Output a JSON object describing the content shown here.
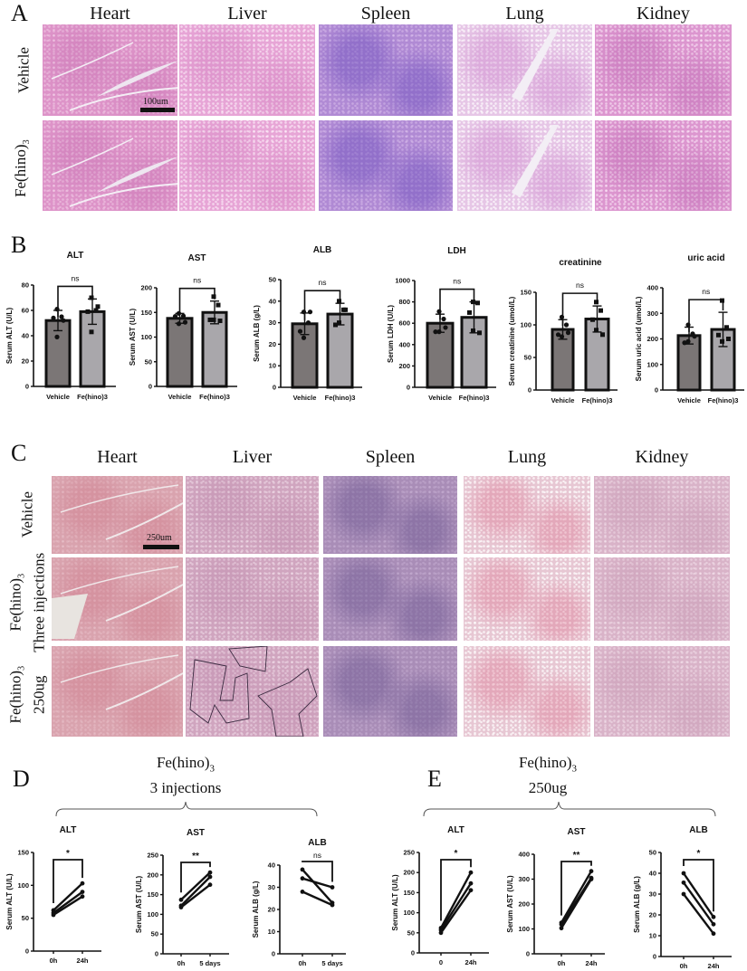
{
  "panels": {
    "A": {
      "letter": "A",
      "columns": [
        "Heart",
        "Liver",
        "Spleen",
        "Lung",
        "Kidney"
      ],
      "rows": [
        "Vehicle",
        "Fe(hino)3"
      ],
      "scale_bar": "100um"
    },
    "B": {
      "letter": "B"
    },
    "C": {
      "letter": "C",
      "columns": [
        "Heart",
        "Liver",
        "Spleen",
        "Lung",
        "Kidney"
      ],
      "rows": [
        {
          "line1": "Vehicle",
          "line2": ""
        },
        {
          "line1": "Fe(hino)3",
          "line2": "Three injections"
        },
        {
          "line1": "Fe(hino)3",
          "line2": "250ug"
        }
      ],
      "scale_bar": "250um"
    },
    "D": {
      "letter": "D",
      "group_line1": "Fe(hino)3",
      "group_line2": "3 injections"
    },
    "E": {
      "letter": "E",
      "group_line1": "Fe(hino)3",
      "group_line2": "250ug"
    }
  },
  "colors": {
    "vehicle_bar": "#7b7676",
    "treatment_bar": "#a9a7ab",
    "ink": "#111111"
  },
  "chart_data": [
    {
      "panel": "B",
      "type": "bar",
      "title": "ALT",
      "ylabel": "Serum ALT (U/L)",
      "categories": [
        "Vehicle",
        "Fe(hino)3"
      ],
      "ylim": [
        0,
        80
      ],
      "yticks": [
        0,
        20,
        40,
        60,
        80
      ],
      "values": [
        52,
        59
      ],
      "sd": [
        8,
        10
      ],
      "points": [
        [
          61,
          55,
          54,
          39,
          52
        ],
        [
          70,
          60,
          59,
          43,
          63
        ]
      ],
      "significance": "ns"
    },
    {
      "panel": "B",
      "type": "bar",
      "title": "AST",
      "ylabel": "Serum AST (U/L)",
      "categories": [
        "Vehicle",
        "Fe(hino)3"
      ],
      "ylim": [
        0,
        200
      ],
      "yticks": [
        0,
        50,
        100,
        150,
        200
      ],
      "values": [
        138,
        150
      ],
      "sd": [
        10,
        23
      ],
      "points": [
        [
          148,
          143,
          142,
          127,
          130
        ],
        [
          182,
          165,
          135,
          135,
          133
        ]
      ],
      "significance": "ns"
    },
    {
      "panel": "B",
      "type": "bar",
      "title": "ALB",
      "ylabel": "Serum ALB (g/L)",
      "categories": [
        "Vehicle",
        "Fe(hino)3"
      ],
      "ylim": [
        0,
        50
      ],
      "yticks": [
        0,
        10,
        20,
        30,
        40,
        50
      ],
      "values": [
        29.5,
        34
      ],
      "sd": [
        5,
        5
      ],
      "points": [
        [
          35,
          30,
          26,
          23,
          35
        ],
        [
          40,
          36,
          29,
          30,
          36
        ]
      ],
      "significance": "ns"
    },
    {
      "panel": "B",
      "type": "bar",
      "title": "LDH",
      "ylabel": "Serum LDH (U/L)",
      "categories": [
        "Vehicle",
        "Fe(hino)3"
      ],
      "ylim": [
        0,
        1000
      ],
      "yticks": [
        0,
        200,
        400,
        600,
        800,
        1000
      ],
      "values": [
        600,
        655
      ],
      "sd": [
        85,
        145
      ],
      "points": [
        [
          710,
          640,
          520,
          520,
          560
        ],
        [
          800,
          790,
          700,
          530,
          510
        ]
      ],
      "significance": "ns"
    },
    {
      "panel": "B",
      "type": "bar",
      "title": "creatinine",
      "ylabel": "Serum creatinine (umol/L)",
      "categories": [
        "Vehicle",
        "Fe(hino)3"
      ],
      "ylim": [
        0,
        150
      ],
      "yticks": [
        0,
        50,
        100,
        150
      ],
      "values": [
        93,
        109
      ],
      "sd": [
        15,
        20
      ],
      "points": [
        [
          112,
          100,
          85,
          82,
          88
        ],
        [
          135,
          122,
          108,
          92,
          85
        ]
      ],
      "significance": "ns"
    },
    {
      "panel": "B",
      "type": "bar",
      "title": "uric acid",
      "ylabel": "Serum uric acid (umol/L)",
      "categories": [
        "Vehicle",
        "Fe(hino)3"
      ],
      "ylim": [
        0,
        400
      ],
      "yticks": [
        0,
        100,
        200,
        300,
        400
      ],
      "values": [
        213,
        237
      ],
      "sd": [
        33,
        67
      ],
      "points": [
        [
          255,
          220,
          185,
          190,
          210
        ],
        [
          350,
          245,
          215,
          190,
          200
        ]
      ],
      "significance": "ns"
    },
    {
      "panel": "D",
      "type": "line",
      "title": "ALT",
      "ylabel": "Serum ALT (U/L)",
      "x": [
        "0h",
        "24h"
      ],
      "ylim": [
        0,
        150
      ],
      "yticks": [
        0,
        50,
        100,
        150
      ],
      "series": [
        {
          "values": [
            62,
            103
          ]
        },
        {
          "values": [
            58,
            90
          ]
        },
        {
          "values": [
            55,
            83
          ]
        }
      ],
      "significance": "*"
    },
    {
      "panel": "D",
      "type": "line",
      "title": "AST",
      "ylabel": "Serum AST (U/L)",
      "x": [
        "0h",
        "5 days"
      ],
      "ylim": [
        0,
        250
      ],
      "yticks": [
        0,
        50,
        100,
        150,
        200,
        250
      ],
      "series": [
        {
          "values": [
            137,
            206
          ]
        },
        {
          "values": [
            122,
            195
          ]
        },
        {
          "values": [
            118,
            175
          ]
        }
      ],
      "significance": "**"
    },
    {
      "panel": "D",
      "type": "line",
      "title": "ALB",
      "ylabel": "Serum ALB (g/L)",
      "x": [
        "0h",
        "5 days"
      ],
      "ylim": [
        0,
        40
      ],
      "yticks": [
        0,
        10,
        20,
        30,
        40
      ],
      "series": [
        {
          "values": [
            38,
            23
          ]
        },
        {
          "values": [
            34,
            30
          ]
        },
        {
          "values": [
            28,
            22
          ]
        }
      ],
      "significance": "ns"
    },
    {
      "panel": "E",
      "type": "line",
      "title": "ALT",
      "ylabel": "Serum ALT (U/L)",
      "x": [
        "0",
        "24h"
      ],
      "ylim": [
        0,
        250
      ],
      "yticks": [
        0,
        50,
        100,
        150,
        200,
        250
      ],
      "series": [
        {
          "values": [
            62,
            200
          ]
        },
        {
          "values": [
            57,
            173
          ]
        },
        {
          "values": [
            50,
            156
          ]
        }
      ],
      "significance": "*"
    },
    {
      "panel": "E",
      "type": "line",
      "title": "AST",
      "ylabel": "Serum AST (U/L)",
      "x": [
        "0h",
        "24h"
      ],
      "ylim": [
        0,
        400
      ],
      "yticks": [
        0,
        100,
        200,
        300,
        400
      ],
      "series": [
        {
          "values": [
            125,
            332
          ]
        },
        {
          "values": [
            118,
            305
          ]
        },
        {
          "values": [
            103,
            300
          ]
        }
      ],
      "significance": "**"
    },
    {
      "panel": "E",
      "type": "line",
      "title": "ALB",
      "ylabel": "Serum ALB (g/L)",
      "x": [
        "0h",
        "24h"
      ],
      "ylim": [
        0,
        50
      ],
      "yticks": [
        0,
        10,
        20,
        30,
        40,
        50
      ],
      "series": [
        {
          "values": [
            40,
            19
          ]
        },
        {
          "values": [
            35.5,
            15.5
          ]
        },
        {
          "values": [
            30,
            11
          ]
        }
      ],
      "significance": "*"
    }
  ]
}
